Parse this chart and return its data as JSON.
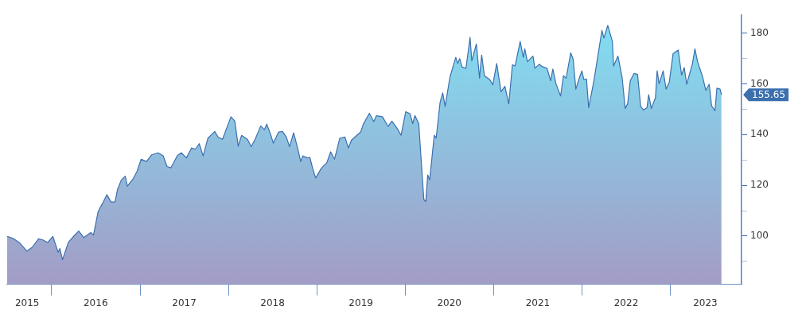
{
  "chart_data": {
    "type": "area",
    "xlim": [
      "2015-06-28",
      "2023-10-22"
    ],
    "ylim": [
      81,
      187
    ],
    "xticks": [
      {
        "value": "2015-09-22",
        "label": "2015"
      },
      {
        "value": "2016-01-01",
        "label": null
      },
      {
        "value": "2016-07-01",
        "label": "2016"
      },
      {
        "value": "2017-01-01",
        "label": null
      },
      {
        "value": "2017-07-02",
        "label": "2017"
      },
      {
        "value": "2018-01-01",
        "label": null
      },
      {
        "value": "2018-07-02",
        "label": "2018"
      },
      {
        "value": "2019-01-01",
        "label": null
      },
      {
        "value": "2019-07-02",
        "label": "2019"
      },
      {
        "value": "2020-01-01",
        "label": null
      },
      {
        "value": "2020-07-01",
        "label": "2020"
      },
      {
        "value": "2021-01-01",
        "label": null
      },
      {
        "value": "2021-07-02",
        "label": "2021"
      },
      {
        "value": "2022-01-01",
        "label": null
      },
      {
        "value": "2022-07-02",
        "label": "2022"
      },
      {
        "value": "2023-01-01",
        "label": null
      },
      {
        "value": "2023-05-25",
        "label": "2023"
      }
    ],
    "yticks": [
      {
        "value": 90,
        "label": null
      },
      100,
      {
        "value": 110,
        "label": null
      },
      120,
      {
        "value": 130,
        "label": null
      },
      140,
      {
        "value": 150,
        "label": null
      },
      160,
      {
        "value": 170,
        "label": null
      },
      180
    ],
    "grid": false,
    "legend": false,
    "marker": "none",
    "line_style": "solid",
    "annotations": [
      "155.65"
    ],
    "series": [
      {
        "color": "#3b6fae",
        "x": [
          "2015-07-01",
          "2015-07-25",
          "2015-08-20",
          "2015-09-21",
          "2015-10-13",
          "2015-11-08",
          "2015-11-25",
          "2015-12-16",
          "2016-01-06",
          "2016-01-28",
          "2016-02-04",
          "2016-02-15",
          "2016-03-10",
          "2016-04-01",
          "2016-04-22",
          "2016-05-13",
          "2016-06-11",
          "2016-06-22",
          "2016-07-11",
          "2016-08-01",
          "2016-08-16",
          "2016-09-03",
          "2016-09-19",
          "2016-09-29",
          "2016-10-15",
          "2016-10-31",
          "2016-11-09",
          "2016-12-03",
          "2016-12-19",
          "2017-01-05",
          "2017-01-27",
          "2017-02-17",
          "2017-03-16",
          "2017-04-06",
          "2017-04-22",
          "2017-05-08",
          "2017-06-04",
          "2017-06-20",
          "2017-07-11",
          "2017-08-01",
          "2017-08-17",
          "2017-09-02",
          "2017-09-18",
          "2017-10-08",
          "2017-11-05",
          "2017-11-19",
          "2017-12-07",
          "2018-01-11",
          "2018-01-27",
          "2018-02-10",
          "2018-02-24",
          "2018-03-20",
          "2018-04-05",
          "2018-04-23",
          "2018-05-14",
          "2018-05-29",
          "2018-06-08",
          "2018-06-24",
          "2018-07-05",
          "2018-07-27",
          "2018-08-12",
          "2018-08-28",
          "2018-09-10",
          "2018-09-27",
          "2018-10-16",
          "2018-10-26",
          "2018-11-04",
          "2018-11-22",
          "2018-12-03",
          "2018-12-14",
          "2018-12-27",
          "2019-01-20",
          "2019-02-11",
          "2019-02-27",
          "2019-03-15",
          "2019-04-06",
          "2019-04-27",
          "2019-05-11",
          "2019-05-24",
          "2019-07-01",
          "2019-07-12",
          "2019-08-06",
          "2019-08-24",
          "2019-09-04",
          "2019-09-29",
          "2019-10-22",
          "2019-11-07",
          "2019-11-29",
          "2019-12-15",
          "2020-01-03",
          "2020-01-21",
          "2020-02-01",
          "2020-02-10",
          "2020-02-26",
          "2020-03-04",
          "2020-03-18",
          "2020-03-26",
          "2020-04-03",
          "2020-04-11",
          "2020-04-30",
          "2020-05-08",
          "2020-05-24",
          "2020-06-04",
          "2020-06-14",
          "2020-07-04",
          "2020-07-28",
          "2020-08-05",
          "2020-08-13",
          "2020-08-23",
          "2020-09-08",
          "2020-09-25",
          "2020-10-02",
          "2020-10-21",
          "2020-11-03",
          "2020-11-12",
          "2020-11-23",
          "2020-12-15",
          "2020-12-28",
          "2021-01-13",
          "2021-01-31",
          "2021-02-16",
          "2021-03-04",
          "2021-03-19",
          "2021-03-30",
          "2021-04-20",
          "2021-05-03",
          "2021-05-09",
          "2021-05-20",
          "2021-06-12",
          "2021-06-20",
          "2021-07-08",
          "2021-07-19",
          "2021-08-09",
          "2021-08-24",
          "2021-09-02",
          "2021-09-15",
          "2021-10-04",
          "2021-10-16",
          "2021-10-27",
          "2021-11-15",
          "2021-11-25",
          "2021-12-06",
          "2021-12-20",
          "2021-12-31",
          "2022-01-08",
          "2022-01-19",
          "2022-01-28",
          "2022-02-18",
          "2022-03-13",
          "2022-03-24",
          "2022-04-01",
          "2022-04-17",
          "2022-05-06",
          "2022-05-11",
          "2022-05-29",
          "2022-06-15",
          "2022-06-28",
          "2022-07-08",
          "2022-07-19",
          "2022-08-04",
          "2022-08-18",
          "2022-08-31",
          "2022-09-12",
          "2022-09-26",
          "2022-10-03",
          "2022-10-14",
          "2022-10-31",
          "2022-11-07",
          "2022-11-15",
          "2022-12-02",
          "2022-12-14",
          "2022-12-27",
          "2023-01-12",
          "2023-02-02",
          "2023-02-16",
          "2023-02-27",
          "2023-03-09",
          "2023-04-02",
          "2023-04-12",
          "2023-04-23",
          "2023-05-14",
          "2023-05-27",
          "2023-06-10",
          "2023-06-20",
          "2023-07-04",
          "2023-07-12",
          "2023-07-25",
          "2023-07-31"
        ],
        "values": [
          99.9,
          99.1,
          97.5,
          94.1,
          95.6,
          98.9,
          98.5,
          97.5,
          99.9,
          93.6,
          95.1,
          90.7,
          97.5,
          99.9,
          102.0,
          99.4,
          101.4,
          100.4,
          109.6,
          113.4,
          116.3,
          113.4,
          113.4,
          118.3,
          122.1,
          123.6,
          119.7,
          122.6,
          125.5,
          130.3,
          129.4,
          132.0,
          132.8,
          131.6,
          127.4,
          126.9,
          131.8,
          132.8,
          130.8,
          134.7,
          134.2,
          136.4,
          131.6,
          138.6,
          141.2,
          139.0,
          138.1,
          147.0,
          145.3,
          135.4,
          139.7,
          138.1,
          135.2,
          138.6,
          143.4,
          141.9,
          144.1,
          140.0,
          136.6,
          141.0,
          141.2,
          139.0,
          135.2,
          140.7,
          133.7,
          129.4,
          131.6,
          130.8,
          131.0,
          126.9,
          122.9,
          126.8,
          128.9,
          133.2,
          130.3,
          138.6,
          139.0,
          134.7,
          137.8,
          141.0,
          144.1,
          148.4,
          145.1,
          147.4,
          147.0,
          143.2,
          145.3,
          142.4,
          139.7,
          149.0,
          148.2,
          144.3,
          147.5,
          144.3,
          134.2,
          114.4,
          113.6,
          124.1,
          122.1,
          139.7,
          138.6,
          152.6,
          156.4,
          151.1,
          162.7,
          170.4,
          168.0,
          169.9,
          166.6,
          166.1,
          178.3,
          169.0,
          175.7,
          162.2,
          171.4,
          163.2,
          161.7,
          159.6,
          168.0,
          156.9,
          159.0,
          152.1,
          167.5,
          167.0,
          176.7,
          170.4,
          173.8,
          168.7,
          170.9,
          166.1,
          167.7,
          166.8,
          166.1,
          161.2,
          165.8,
          160.0,
          155.2,
          163.2,
          162.2,
          172.2,
          169.7,
          157.9,
          162.2,
          165.1,
          161.7,
          161.9,
          150.6,
          160.8,
          174.5,
          181.1,
          178.0,
          183.0,
          176.7,
          167.0,
          170.9,
          162.7,
          150.3,
          152.1,
          161.2,
          164.1,
          163.7,
          151.1,
          149.7,
          150.6,
          155.7,
          150.3,
          154.5,
          165.1,
          160.0,
          165.1,
          157.9,
          160.6,
          171.9,
          173.3,
          163.5,
          166.4,
          159.8,
          168.0,
          173.8,
          168.7,
          162.7,
          157.4,
          159.8,
          151.3,
          149.4,
          158.3,
          157.9,
          155.65
        ]
      }
    ]
  }
}
